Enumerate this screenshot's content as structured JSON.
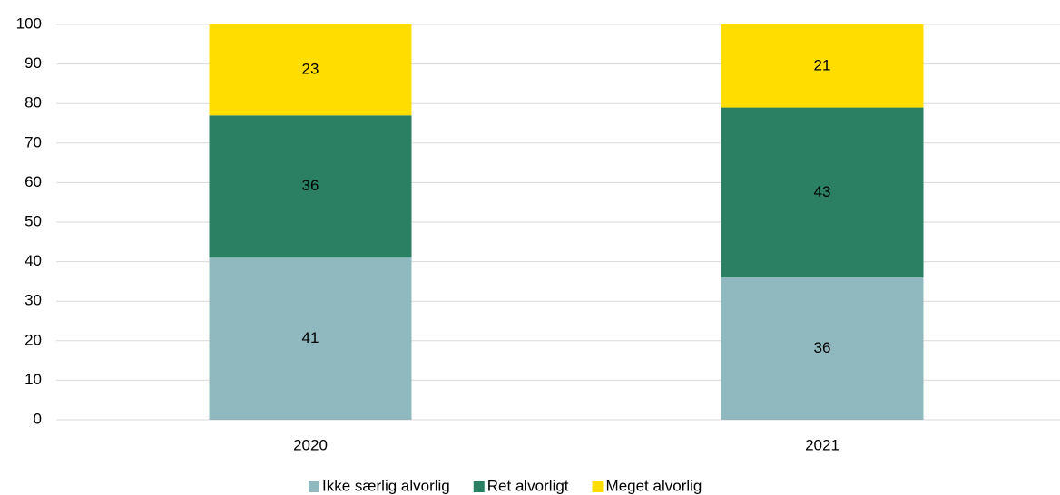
{
  "chart_data": {
    "type": "stacked_bar",
    "categories": [
      "2020",
      "2021"
    ],
    "series": [
      {
        "name": "Ikke særlig alvorlig",
        "color": "#8fb8bf",
        "values": [
          41,
          36
        ]
      },
      {
        "name": "Ret alvorligt",
        "color": "#2b7f62",
        "values": [
          36,
          43
        ]
      },
      {
        "name": "Meget alvorlig",
        "color": "#ffdd00",
        "values": [
          23,
          21
        ]
      }
    ],
    "ylim": [
      0,
      100
    ],
    "yticks": [
      0,
      10,
      20,
      30,
      40,
      50,
      60,
      70,
      80,
      90,
      100
    ],
    "grid": true,
    "legend": "bottom"
  }
}
